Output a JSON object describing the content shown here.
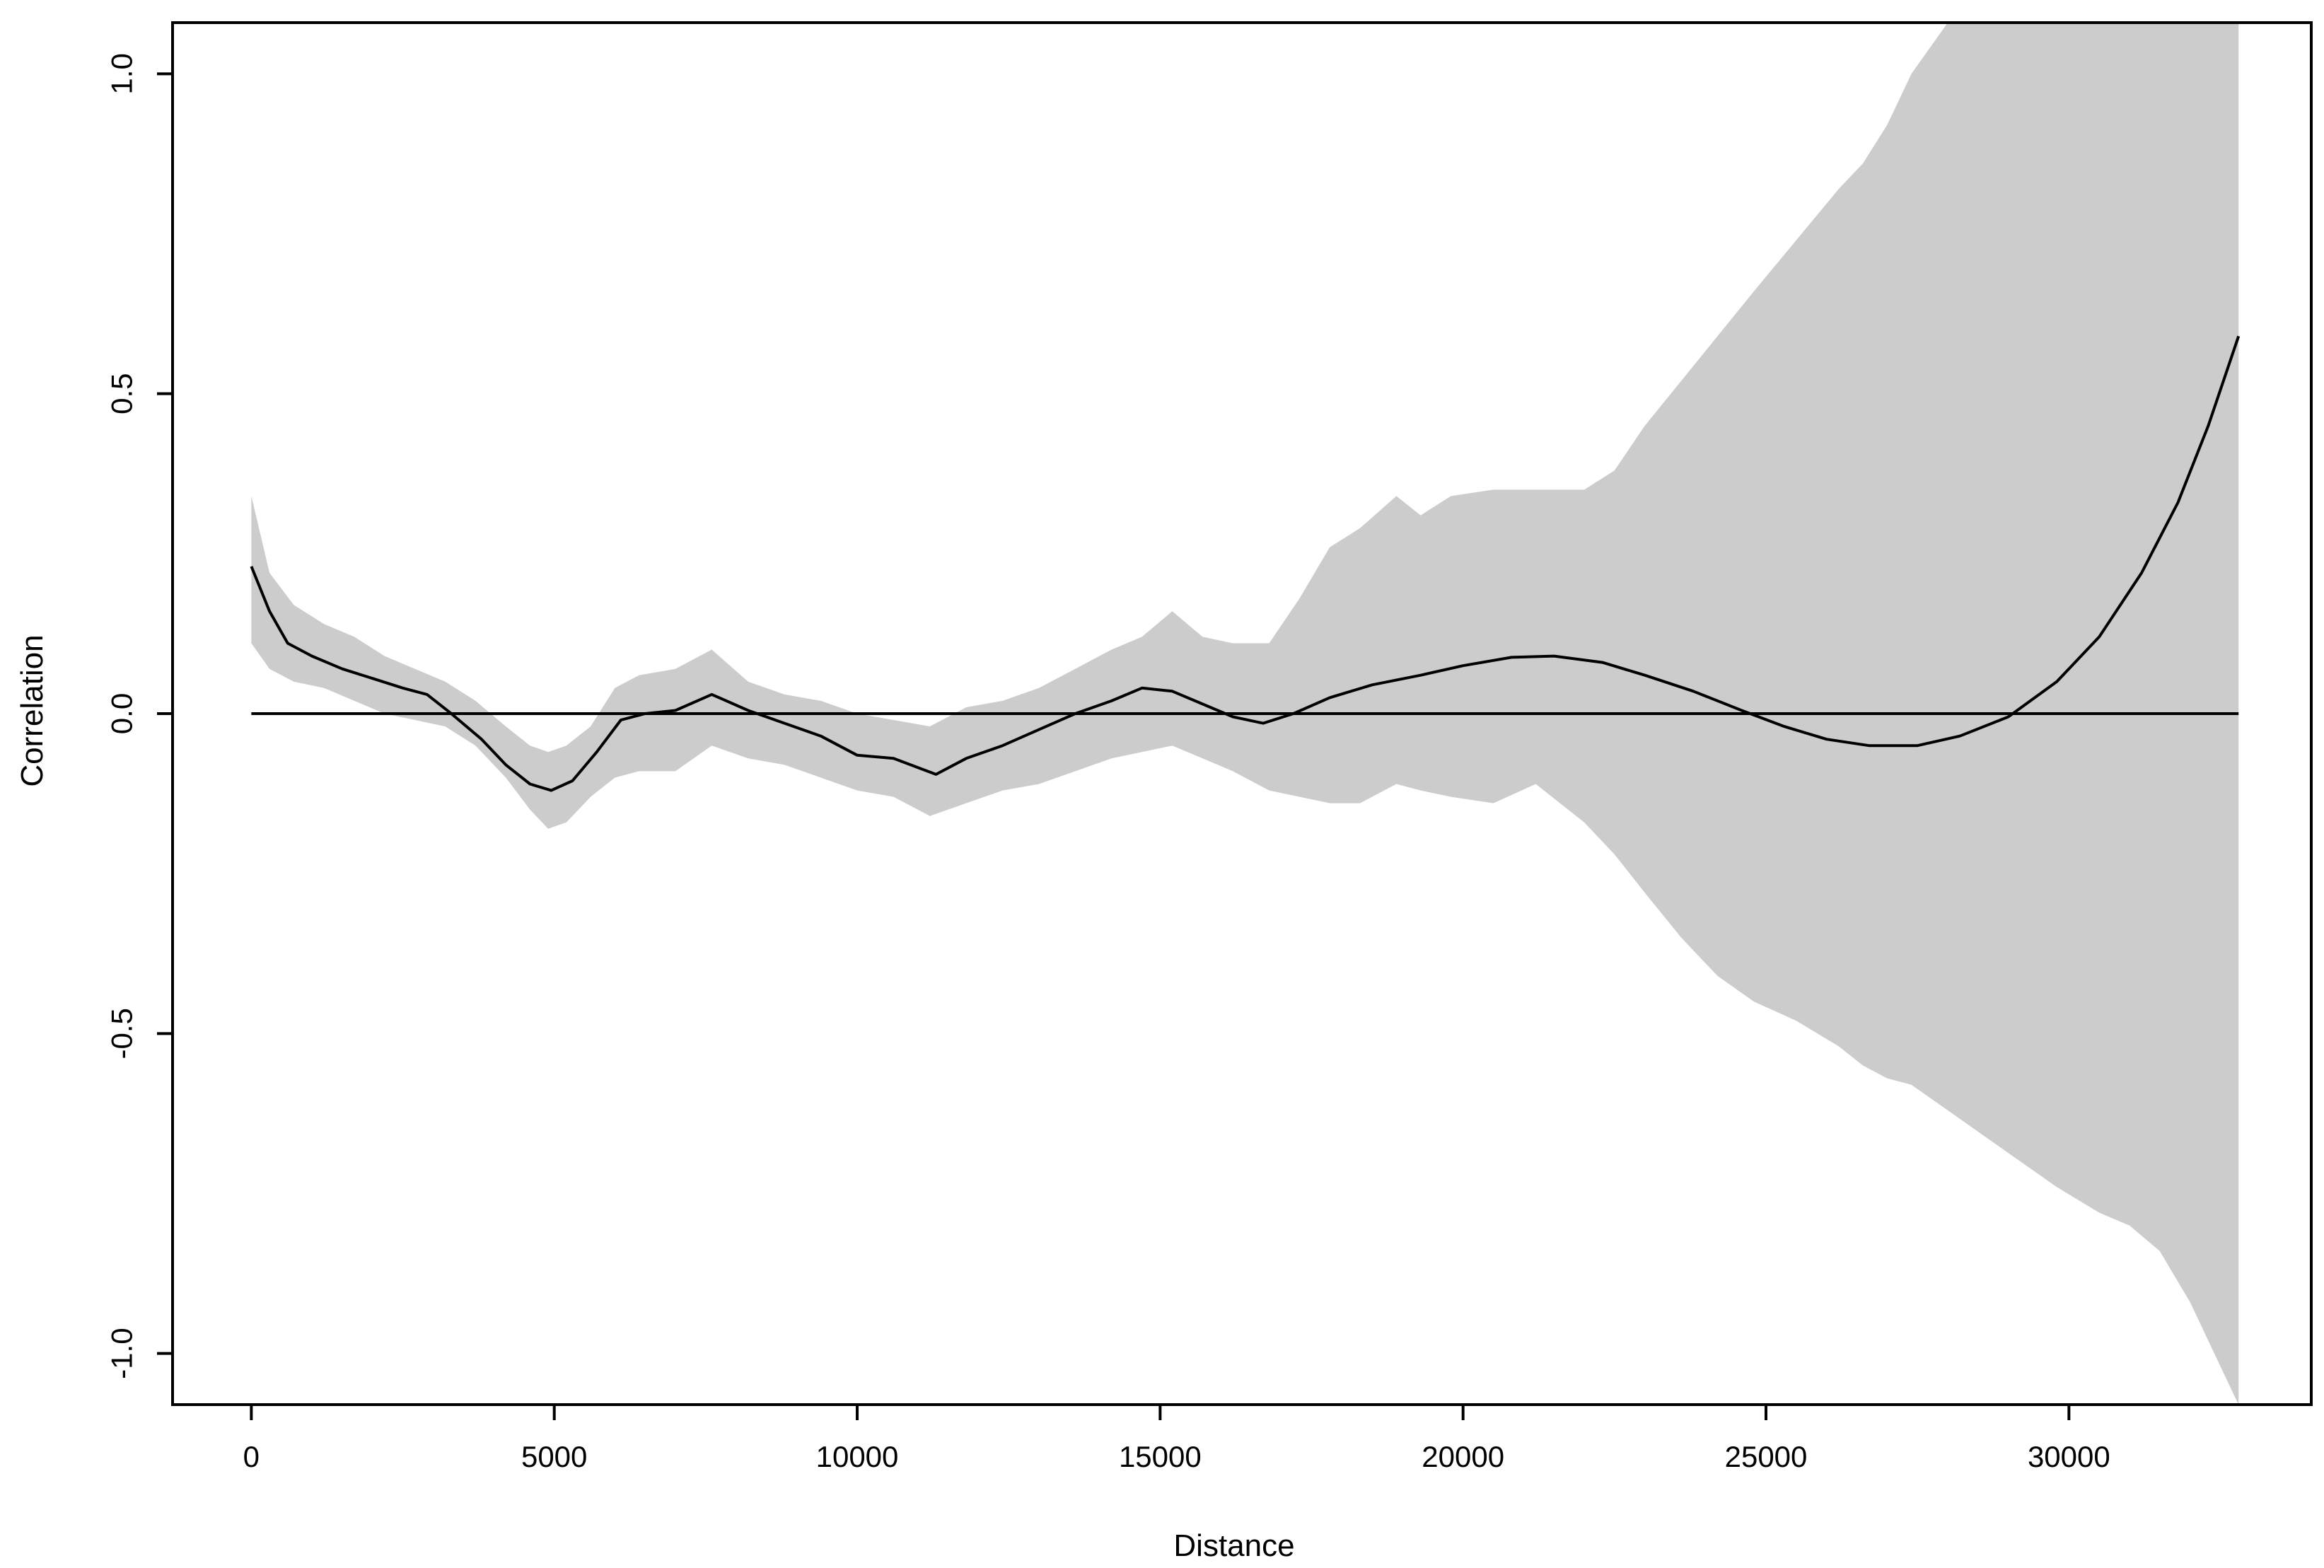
{
  "chart_data": {
    "type": "line",
    "title": "",
    "xlabel": "Distance",
    "ylabel": "Correlation",
    "xlim": [
      -1300,
      34000
    ],
    "ylim": [
      -1.08,
      1.08
    ],
    "x_ticks": [
      0,
      5000,
      10000,
      15000,
      20000,
      25000,
      30000
    ],
    "x_tick_labels": [
      "0",
      "5000",
      "10000",
      "15000",
      "20000",
      "25000",
      "30000"
    ],
    "y_ticks": [
      -1.0,
      -0.5,
      0.0,
      0.5,
      1.0
    ],
    "y_tick_labels": [
      "-1.0",
      "-0.5",
      "0.0",
      "0.5",
      "1.0"
    ],
    "grid": false,
    "reference_line": {
      "y": 0,
      "x_range": [
        0,
        32800
      ]
    },
    "colors": {
      "line": "#000000",
      "band": "#cccccc",
      "axis": "#000000"
    },
    "series": [
      {
        "x": [
          0,
          300,
          600,
          1000,
          1500,
          2000,
          2500,
          2900,
          3300,
          3800,
          4200,
          4600,
          4950,
          5300,
          5700,
          6100,
          6500,
          7000,
          7600,
          8200,
          8800,
          9400,
          10000,
          10600,
          11300,
          11800,
          12400,
          13000,
          13600,
          14200,
          14700,
          15200,
          15700,
          16200,
          16700,
          17200,
          17800,
          18500,
          19300,
          20000,
          20800,
          21500,
          22300,
          23000,
          23800,
          24600,
          25300,
          26000,
          26700,
          27500,
          28200,
          29000,
          29800,
          30500,
          31200,
          31800,
          32300,
          32800
        ],
        "y": [
          0.23,
          0.16,
          0.11,
          0.09,
          0.07,
          0.055,
          0.04,
          0.03,
          0.0,
          -0.04,
          -0.08,
          -0.11,
          -0.12,
          -0.105,
          -0.06,
          -0.01,
          0.0,
          0.005,
          0.03,
          0.005,
          -0.015,
          -0.035,
          -0.065,
          -0.07,
          -0.095,
          -0.07,
          -0.05,
          -0.025,
          0.0,
          0.02,
          0.04,
          0.035,
          0.015,
          -0.005,
          -0.015,
          0.0,
          0.025,
          0.045,
          0.06,
          0.075,
          0.088,
          0.09,
          0.08,
          0.06,
          0.035,
          0.005,
          -0.02,
          -0.04,
          -0.05,
          -0.05,
          -0.035,
          -0.005,
          0.05,
          0.12,
          0.22,
          0.33,
          0.45,
          0.59
        ]
      }
    ],
    "confidence_band": {
      "x": [
        0,
        300,
        700,
        1200,
        1700,
        2200,
        2700,
        3200,
        3700,
        4200,
        4600,
        4900,
        5200,
        5600,
        6000,
        6400,
        7000,
        7600,
        8200,
        8800,
        9400,
        10000,
        10600,
        11200,
        11800,
        12400,
        13000,
        13600,
        14200,
        14700,
        15200,
        15700,
        16200,
        16800,
        17300,
        17800,
        18300,
        18900,
        19300,
        19800,
        20500,
        21200,
        22000,
        22500,
        23000,
        23600,
        24200,
        24800,
        25500,
        26200,
        26600,
        27000,
        27400,
        28000,
        28600,
        29200,
        29800,
        30500,
        31000,
        31500,
        32000,
        32500,
        32800
      ],
      "upper": [
        0.34,
        0.22,
        0.17,
        0.14,
        0.12,
        0.09,
        0.07,
        0.05,
        0.02,
        -0.02,
        -0.05,
        -0.06,
        -0.05,
        -0.02,
        0.04,
        0.06,
        0.07,
        0.1,
        0.05,
        0.03,
        0.02,
        0.0,
        -0.01,
        -0.02,
        0.01,
        0.02,
        0.04,
        0.07,
        0.1,
        0.12,
        0.16,
        0.12,
        0.11,
        0.11,
        0.18,
        0.26,
        0.29,
        0.34,
        0.31,
        0.34,
        0.35,
        0.35,
        0.35,
        0.38,
        0.45,
        0.52,
        0.59,
        0.66,
        0.74,
        0.82,
        0.86,
        0.92,
        1.0,
        1.08,
        1.08,
        1.08,
        1.08,
        1.08,
        1.08,
        1.08,
        1.08,
        1.08,
        1.08
      ],
      "lower": [
        0.11,
        0.07,
        0.05,
        0.04,
        0.02,
        0.0,
        -0.01,
        -0.02,
        -0.05,
        -0.1,
        -0.15,
        -0.18,
        -0.17,
        -0.13,
        -0.1,
        -0.09,
        -0.09,
        -0.05,
        -0.07,
        -0.08,
        -0.1,
        -0.12,
        -0.13,
        -0.16,
        -0.14,
        -0.12,
        -0.11,
        -0.09,
        -0.07,
        -0.06,
        -0.05,
        -0.07,
        -0.09,
        -0.12,
        -0.13,
        -0.14,
        -0.14,
        -0.11,
        -0.12,
        -0.13,
        -0.14,
        -0.11,
        -0.17,
        -0.22,
        -0.28,
        -0.35,
        -0.41,
        -0.45,
        -0.48,
        -0.52,
        -0.55,
        -0.57,
        -0.58,
        -0.62,
        -0.66,
        -0.7,
        -0.74,
        -0.78,
        -0.8,
        -0.84,
        -0.92,
        -1.02,
        -1.08
      ]
    }
  }
}
